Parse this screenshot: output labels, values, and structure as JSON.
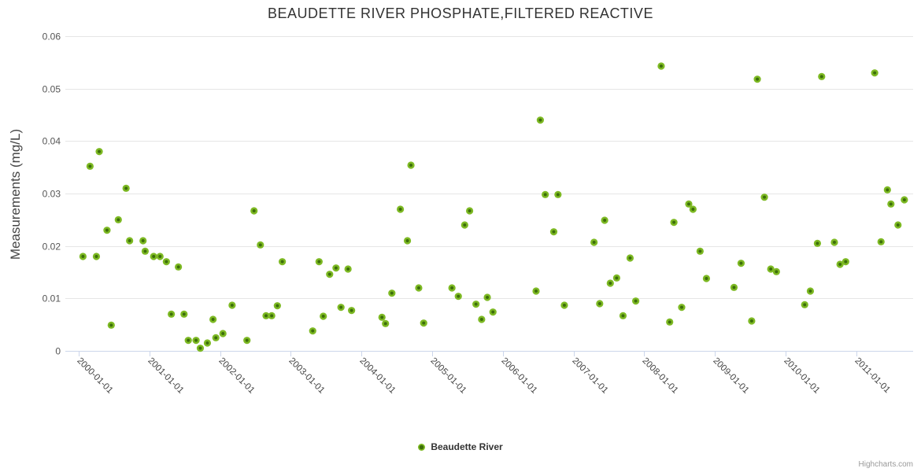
{
  "credits": "Highcharts.com",
  "legend": {
    "items": [
      {
        "label": "Beaudette River",
        "marker_color": "#7DB923"
      }
    ]
  },
  "colors": {
    "grid_line": "#e6e6e6",
    "axis_line": "#ccd6eb",
    "tick_label": "#555555",
    "title": "#333333",
    "marker_outer": "#7DB923",
    "marker_inner": "#3C6E0A"
  },
  "chart_data": {
    "type": "scatter",
    "title": "BEAUDETTE RIVER PHOSPHATE,FILTERED REACTIVE",
    "xlabel": "",
    "ylabel": "Measurements (mg/L)",
    "ylim": [
      0,
      0.06
    ],
    "grid": true,
    "legend_position": "bottom",
    "y_ticks": [
      0,
      0.01,
      0.02,
      0.03,
      0.04,
      0.05,
      0.06
    ],
    "y_tick_labels": [
      "0",
      "0.01",
      "0.02",
      "0.03",
      "0.04",
      "0.05",
      "0.06"
    ],
    "x_ticks_years": [
      2000,
      2001,
      2002,
      2003,
      2004,
      2005,
      2006,
      2007,
      2008,
      2009,
      2010,
      2011
    ],
    "x_tick_labels": [
      "2000-01-01",
      "2001-01-01",
      "2002-01-01",
      "2003-01-01",
      "2004-01-01",
      "2005-01-01",
      "2006-01-01",
      "2007-01-01",
      "2008-01-01",
      "2009-01-01",
      "2010-01-01",
      "2011-01-01"
    ],
    "x_range_years": [
      1999.81,
      2011.81
    ],
    "series": [
      {
        "name": "Beaudette River",
        "color": "#7DB923",
        "points": [
          [
            2000.06,
            0.018
          ],
          [
            2000.16,
            0.0352
          ],
          [
            2000.25,
            0.018
          ],
          [
            2000.29,
            0.038
          ],
          [
            2000.4,
            0.023
          ],
          [
            2000.46,
            0.0049
          ],
          [
            2000.56,
            0.025
          ],
          [
            2000.67,
            0.031
          ],
          [
            2000.72,
            0.021
          ],
          [
            2000.91,
            0.021
          ],
          [
            2000.94,
            0.019
          ],
          [
            2001.06,
            0.018
          ],
          [
            2001.15,
            0.018
          ],
          [
            2001.24,
            0.017
          ],
          [
            2001.31,
            0.007
          ],
          [
            2001.41,
            0.016
          ],
          [
            2001.49,
            0.007
          ],
          [
            2001.55,
            0.002
          ],
          [
            2001.66,
            0.002
          ],
          [
            2001.72,
            0.0005
          ],
          [
            2001.82,
            0.0015
          ],
          [
            2001.9,
            0.006
          ],
          [
            2001.94,
            0.0025
          ],
          [
            2002.04,
            0.0033
          ],
          [
            2002.17,
            0.0087
          ],
          [
            2002.38,
            0.002
          ],
          [
            2002.48,
            0.0267
          ],
          [
            2002.57,
            0.0202
          ],
          [
            2002.65,
            0.0067
          ],
          [
            2002.73,
            0.0067
          ],
          [
            2002.81,
            0.0086
          ],
          [
            2002.88,
            0.017
          ],
          [
            2003.31,
            0.0038
          ],
          [
            2003.4,
            0.017
          ],
          [
            2003.46,
            0.0066
          ],
          [
            2003.55,
            0.0146
          ],
          [
            2003.64,
            0.0158
          ],
          [
            2003.71,
            0.0083
          ],
          [
            2003.81,
            0.0156
          ],
          [
            2003.86,
            0.0077
          ],
          [
            2004.29,
            0.0064
          ],
          [
            2004.34,
            0.0052
          ],
          [
            2004.43,
            0.011
          ],
          [
            2004.55,
            0.027
          ],
          [
            2004.65,
            0.021
          ],
          [
            2004.7,
            0.0354
          ],
          [
            2004.81,
            0.012
          ],
          [
            2004.88,
            0.0053
          ],
          [
            2005.28,
            0.012
          ],
          [
            2005.37,
            0.0104
          ],
          [
            2005.46,
            0.024
          ],
          [
            2005.53,
            0.0267
          ],
          [
            2005.62,
            0.0089
          ],
          [
            2005.7,
            0.006
          ],
          [
            2005.78,
            0.0102
          ],
          [
            2005.86,
            0.0074
          ],
          [
            2006.47,
            0.0114
          ],
          [
            2006.53,
            0.044
          ],
          [
            2006.6,
            0.0298
          ],
          [
            2006.72,
            0.0227
          ],
          [
            2006.78,
            0.0298
          ],
          [
            2006.87,
            0.0087
          ],
          [
            2007.29,
            0.0207
          ],
          [
            2007.37,
            0.009
          ],
          [
            2007.44,
            0.0249
          ],
          [
            2007.52,
            0.0129
          ],
          [
            2007.61,
            0.0139
          ],
          [
            2007.7,
            0.0067
          ],
          [
            2007.8,
            0.0177
          ],
          [
            2007.88,
            0.0095
          ],
          [
            2008.24,
            0.0543
          ],
          [
            2008.36,
            0.0055
          ],
          [
            2008.42,
            0.0245
          ],
          [
            2008.53,
            0.0083
          ],
          [
            2008.63,
            0.028
          ],
          [
            2008.69,
            0.027
          ],
          [
            2008.79,
            0.019
          ],
          [
            2008.88,
            0.0138
          ],
          [
            2009.27,
            0.0121
          ],
          [
            2009.37,
            0.0167
          ],
          [
            2009.52,
            0.0057
          ],
          [
            2009.6,
            0.0518
          ],
          [
            2009.7,
            0.0293
          ],
          [
            2009.79,
            0.0156
          ],
          [
            2009.87,
            0.0151
          ],
          [
            2010.27,
            0.0088
          ],
          [
            2010.35,
            0.0114
          ],
          [
            2010.45,
            0.0205
          ],
          [
            2010.51,
            0.0523
          ],
          [
            2010.69,
            0.0207
          ],
          [
            2010.77,
            0.0165
          ],
          [
            2010.85,
            0.017
          ],
          [
            2011.26,
            0.053
          ],
          [
            2011.35,
            0.0208
          ],
          [
            2011.44,
            0.0307
          ],
          [
            2011.49,
            0.028
          ],
          [
            2011.59,
            0.024
          ],
          [
            2011.68,
            0.0288
          ]
        ]
      }
    ]
  }
}
